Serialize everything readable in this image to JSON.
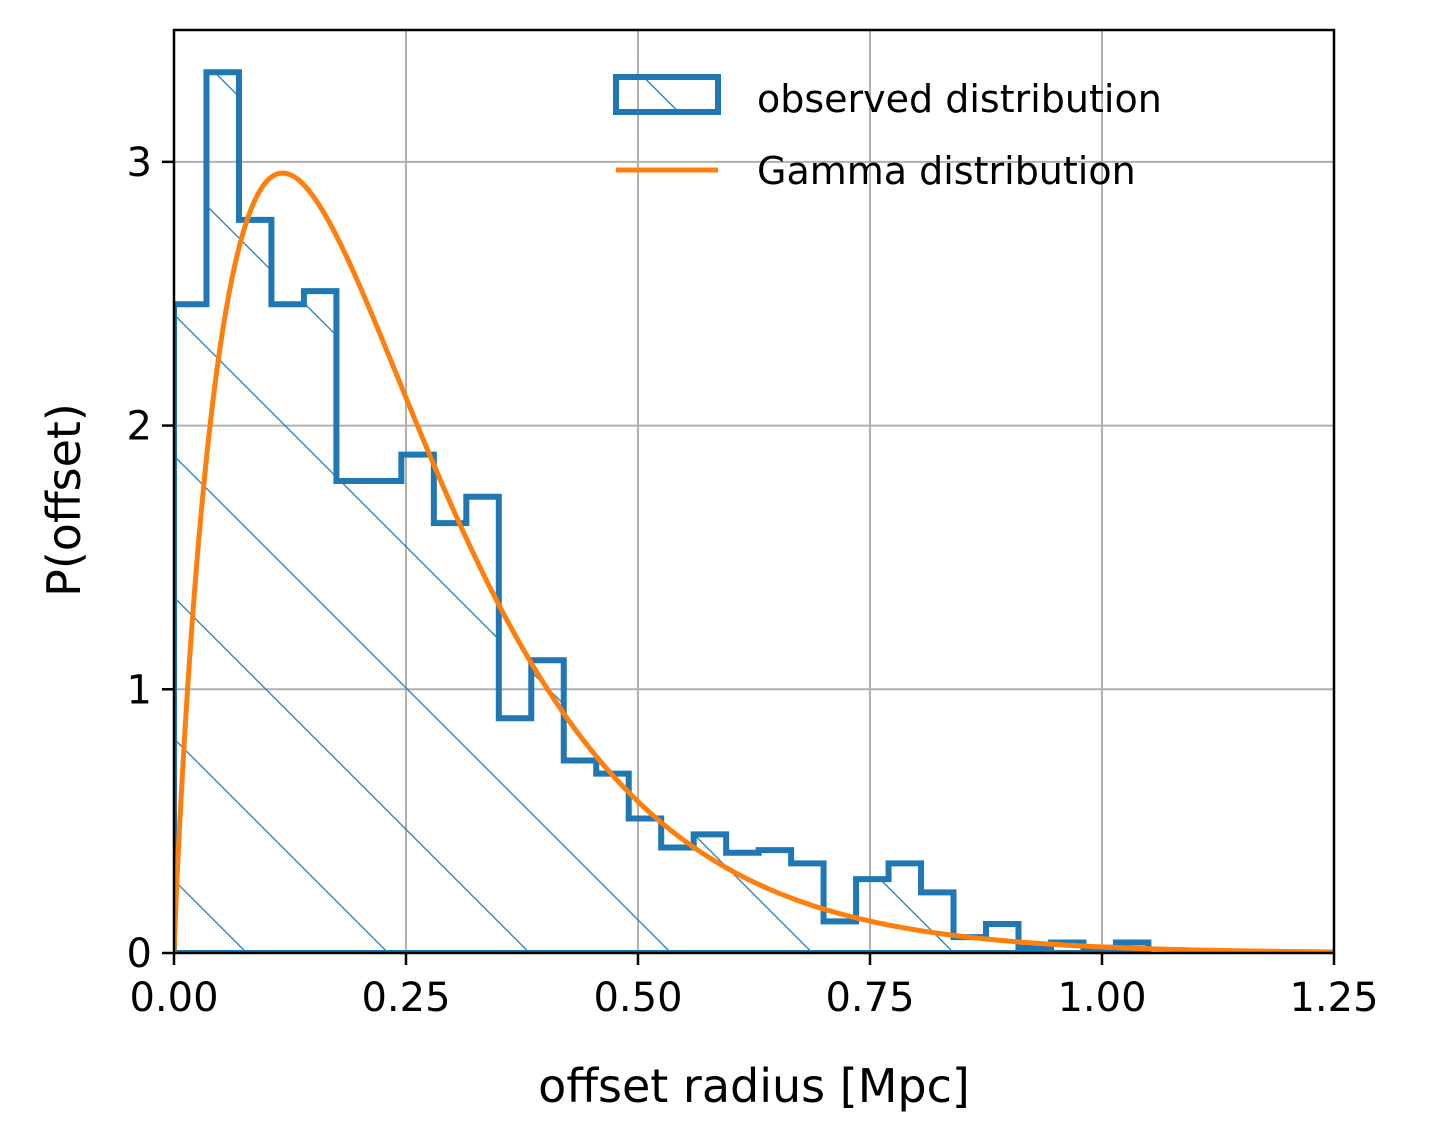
{
  "chart_data": {
    "type": "histogram",
    "xlabel": "offset radius [Mpc]",
    "ylabel": "P(offset)",
    "xlim": [
      0,
      1.25
    ],
    "ylim": [
      0,
      3.5
    ],
    "x_ticks": [
      0,
      0.25,
      0.5,
      0.75,
      1.0,
      1.25
    ],
    "x_tick_labels": [
      "0.00",
      "0.25",
      "0.50",
      "0.75",
      "1.00",
      "1.25"
    ],
    "y_ticks": [
      0,
      1,
      2,
      3
    ],
    "y_tick_labels": [
      "0",
      "1",
      "2",
      "3"
    ],
    "grid": true,
    "legend_position": "top-right",
    "colors": {
      "histogram": "#1f77b4",
      "curve": "#ff7f0e",
      "grid": "#b0b0b0"
    },
    "bin_width": 0.035,
    "series": [
      {
        "name": "observed distribution",
        "kind": "step-histogram",
        "hatch": "diagonal",
        "bin_edges": [
          0.0,
          0.035,
          0.07,
          0.105,
          0.14,
          0.175,
          0.21,
          0.245,
          0.28,
          0.315,
          0.35,
          0.385,
          0.42,
          0.455,
          0.49,
          0.525,
          0.56,
          0.595,
          0.63,
          0.665,
          0.7,
          0.735,
          0.77,
          0.805,
          0.84,
          0.875,
          0.91,
          0.945,
          0.98,
          1.015,
          1.05
        ],
        "values": [
          2.46,
          3.34,
          2.78,
          2.46,
          2.51,
          1.79,
          1.79,
          1.89,
          1.63,
          1.73,
          0.89,
          1.11,
          0.73,
          0.68,
          0.51,
          0.4,
          0.45,
          0.38,
          0.39,
          0.34,
          0.12,
          0.28,
          0.34,
          0.23,
          0.06,
          0.11,
          0.02,
          0.04,
          0.02,
          0.04
        ]
      },
      {
        "name": "Gamma distribution",
        "kind": "line",
        "shape_k": 1.9,
        "scale_theta": 0.13,
        "x_range": [
          0,
          1.25
        ]
      }
    ]
  }
}
